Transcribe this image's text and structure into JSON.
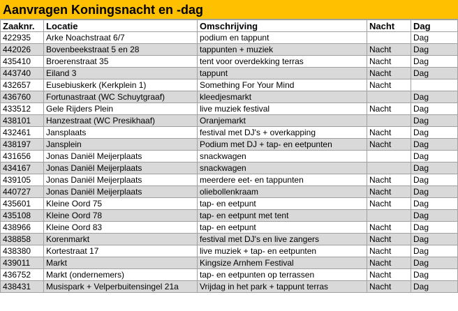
{
  "title": "Aanvragen Koningsnacht en -dag",
  "table": {
    "header": [
      "Zaaknr.",
      "Locatie",
      "Omschrijving",
      "Nacht",
      "Dag"
    ],
    "rows": [
      [
        "422935",
        "Arke Noachstraat 6/7",
        "podium en tappunt",
        null,
        "Dag"
      ],
      [
        "442026",
        "Bovenbeekstraat 5 en 28",
        "tappunten + muziek",
        "Nacht",
        "Dag"
      ],
      [
        "435410",
        "Broerenstraat 35",
        "tent voor overdekking terras",
        "Nacht",
        "Dag"
      ],
      [
        "443740",
        "Eiland 3",
        "tappunt",
        "Nacht",
        "Dag"
      ],
      [
        "432657",
        "Eusebiuskerk (Kerkplein 1)",
        "Something For Your Mind",
        "Nacht",
        null
      ],
      [
        "436760",
        "Fortunastraat (WC Schuytgraaf)",
        "kleedjesmarkt",
        null,
        "Dag"
      ],
      [
        "433512",
        "Gele Rijders Plein",
        "live muziek festival",
        "Nacht",
        "Dag"
      ],
      [
        "438101",
        "Hanzestraat (WC Presikhaaf)",
        "Oranjemarkt",
        null,
        "Dag"
      ],
      [
        "432461",
        "Jansplaats",
        "festival met DJ's + overkapping",
        "Nacht",
        "Dag"
      ],
      [
        "438197",
        "Jansplein",
        "Podium met DJ + tap- en eetpunten",
        "Nacht",
        "Dag"
      ],
      [
        "431656",
        "Jonas Daniël Meijerplaats",
        "snackwagen",
        null,
        "Dag"
      ],
      [
        "434167",
        "Jonas Daniël Meijerplaats",
        "snackwagen",
        null,
        "Dag"
      ],
      [
        "439105",
        "Jonas Daniël Meijerplaats",
        "meerdere eet- en tappunten",
        "Nacht",
        "Dag"
      ],
      [
        "440727",
        "Jonas Daniël Meijerplaats",
        "oliebollenkraam",
        "Nacht",
        "Dag"
      ],
      [
        "435601",
        "Kleine Oord 75",
        "tap- en eetpunt",
        "Nacht",
        "Dag"
      ],
      [
        "435108",
        "Kleine Oord 78",
        "tap- en eetpunt met tent",
        null,
        "Dag"
      ],
      [
        "438966",
        "Kleine Oord 83",
        "tap- en eetpunt",
        "Nacht",
        "Dag"
      ],
      [
        "438858",
        "Korenmarkt",
        "festival met DJ's en live zangers",
        "Nacht",
        "Dag"
      ],
      [
        "438380",
        "Kortestraat 17",
        "live muziek + tap- en eetpunten",
        "Nacht",
        "Dag"
      ],
      [
        "439011",
        "Markt",
        "Kingsize Arnhem Festival",
        "Nacht",
        "Dag"
      ],
      [
        "436752",
        "Markt (ondernemers)",
        "tap- en eetpunten op terrassen",
        "Nacht",
        "Dag"
      ],
      [
        "438431",
        "Musispark + Velperbuitensingel 21a",
        "Vrijdag in het park + tappunt terras",
        "Nacht",
        "Dag"
      ]
    ]
  }
}
